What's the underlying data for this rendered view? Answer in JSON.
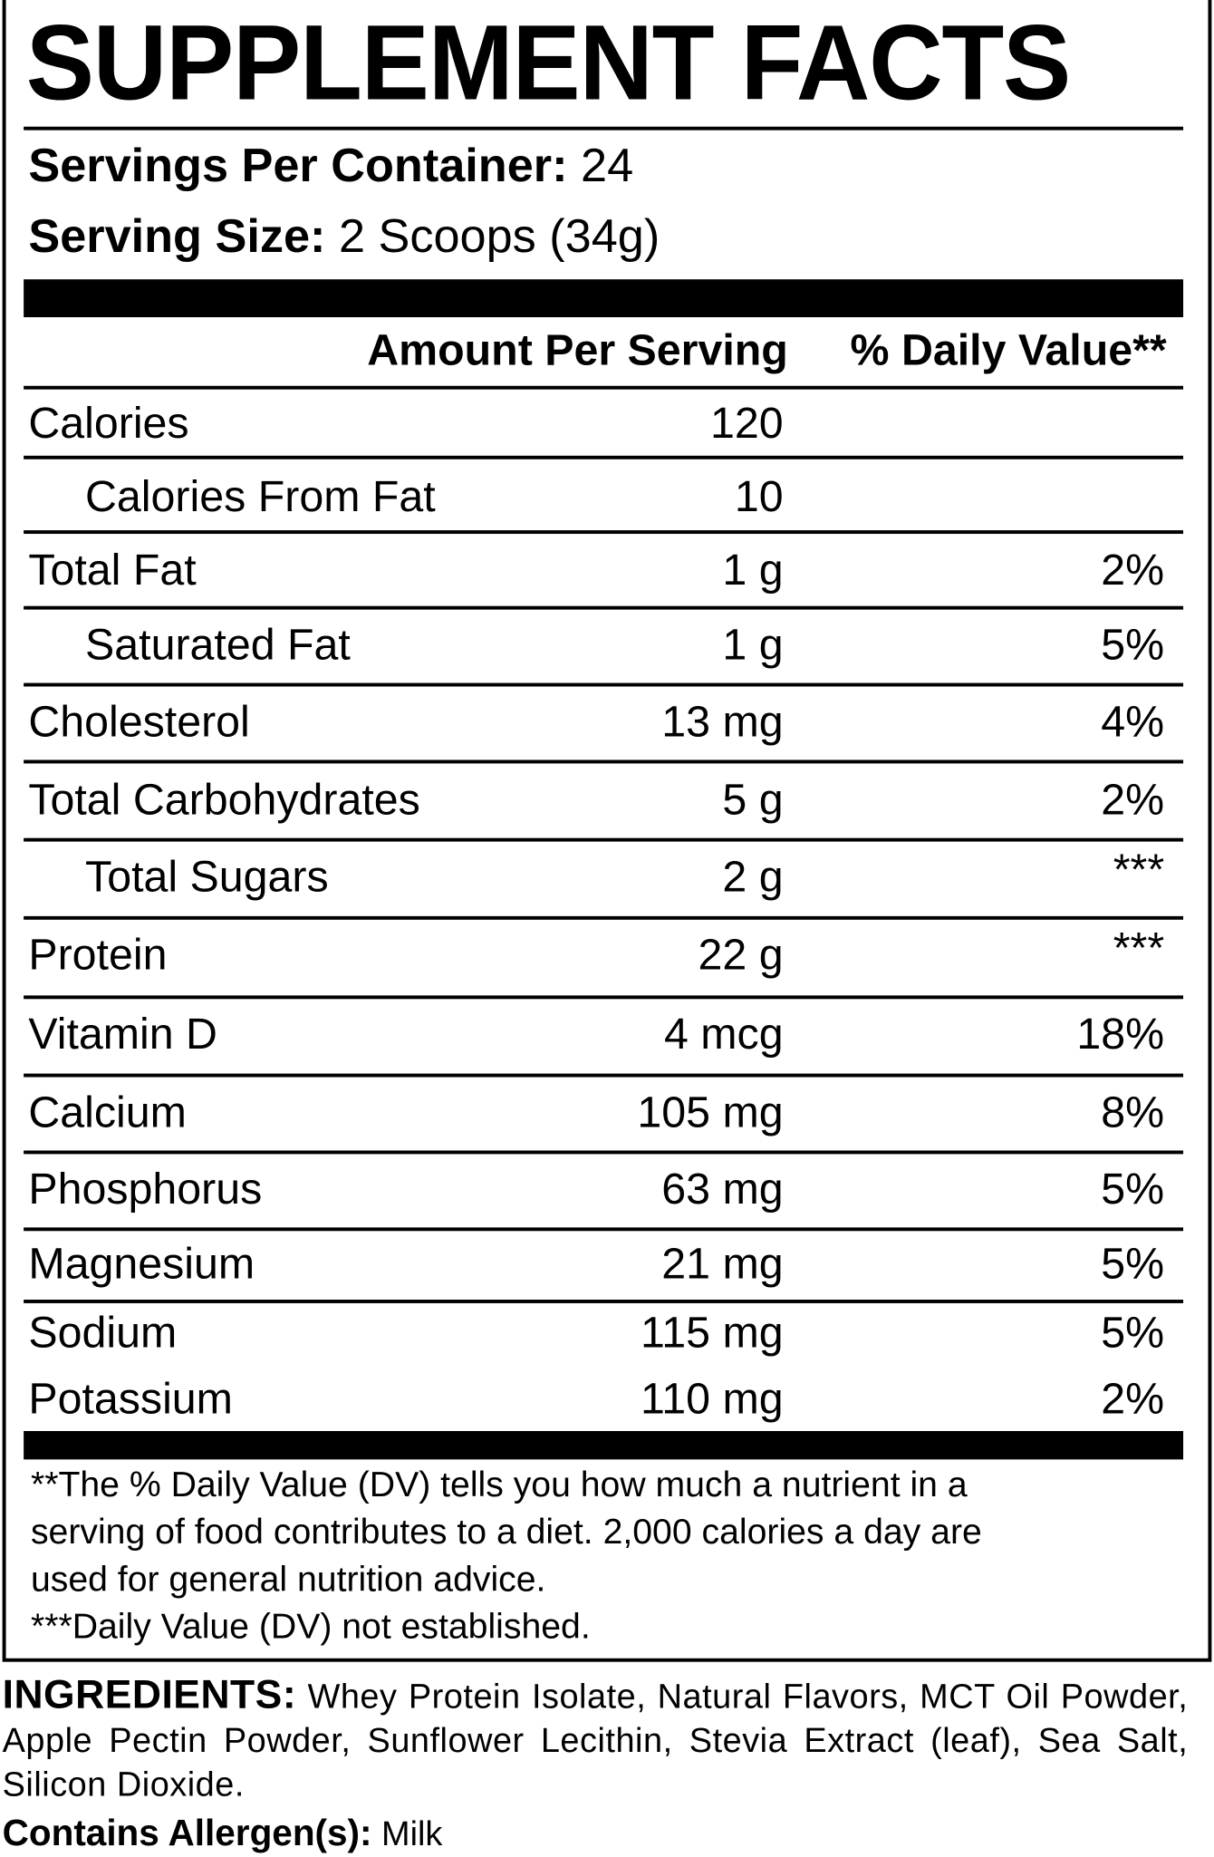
{
  "title": "SUPPLEMENT FACTS",
  "servings_per_container": {
    "label": "Servings Per Container:",
    "value": "24"
  },
  "serving_size": {
    "label": "Serving Size:",
    "value": "2 Scoops (34g)"
  },
  "table": {
    "header": [
      "Amount Per Serving",
      "% Daily Value**"
    ],
    "rows": [
      {
        "name": "Calories",
        "amount": "120"
      },
      {
        "name": "Calories From Fat",
        "amount": "10",
        "indent": true
      },
      {
        "name": "Total Fat",
        "amount": "1 g",
        "dv": "2%"
      },
      {
        "name": "Saturated Fat",
        "amount": "1 g",
        "dv": "5%",
        "indent": true
      },
      {
        "name": "Cholesterol",
        "amount": "13 mg",
        "dv": "4%"
      },
      {
        "name": "Total Carbohydrates",
        "amount": "5 g",
        "dv": "2%"
      },
      {
        "name": "Total Sugars",
        "amount": "2 g",
        "dv": "***",
        "indent": true
      },
      {
        "name": "Protein",
        "amount": "22 g",
        "dv": "***"
      },
      {
        "name": "Vitamin D",
        "amount": "4 mcg",
        "dv": "18%"
      },
      {
        "name": "Calcium",
        "amount": "105 mg",
        "dv": "8%"
      },
      {
        "name": "Phosphorus",
        "amount": "63 mg",
        "dv": "5%"
      },
      {
        "name": "Magnesium",
        "amount": "21 mg",
        "dv": "5%"
      },
      {
        "name": "Sodium",
        "amount": "115 mg",
        "dv": "5%"
      },
      {
        "name": "Potassium",
        "amount": "110 mg",
        "dv": "2%"
      }
    ]
  },
  "footnotes": [
    "**The % Daily Value (DV) tells you how much a nutrient in a",
    "serving of food contributes to a diet. 2,000 calories a day are",
    "used for general nutrition advice.",
    "***Daily Value (DV) not established."
  ],
  "ingredients": {
    "label": "INGREDIENTS:",
    "text": "Whey Protein Isolate, Natural Flavors, MCT Oil Powder, Apple Pectin Powder, Sunflower Lecithin, Stevia Extract (leaf), Sea Salt, Silicon Dioxide."
  },
  "allergens": {
    "label": "Contains Allergen(s):",
    "text": "Milk"
  }
}
